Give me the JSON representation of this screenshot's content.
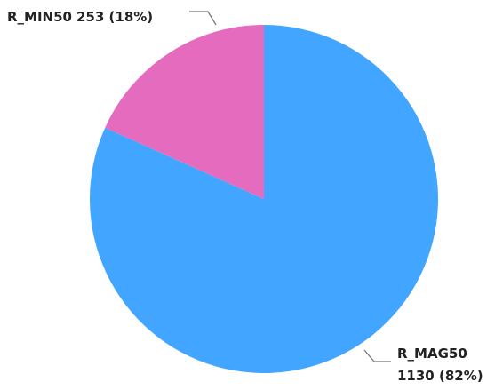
{
  "chart_data": {
    "type": "pie",
    "categories": [
      "R_MAG50",
      "R_MIN50"
    ],
    "values": [
      1130,
      253
    ],
    "value_labels": [
      "1130 (82%)",
      "253 (18%)"
    ],
    "colors": [
      "#42a5ff",
      "#e56bbf"
    ]
  }
}
